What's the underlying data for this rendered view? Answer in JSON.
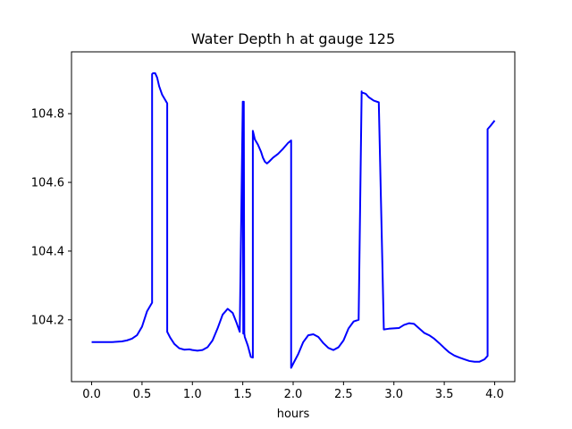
{
  "chart_data": {
    "type": "line",
    "title": "Water Depth h at gauge 125",
    "xlabel": "hours",
    "ylabel": "",
    "xlim": [
      -0.2,
      4.2
    ],
    "ylim": [
      104.02,
      104.98
    ],
    "xticks": [
      0.0,
      0.5,
      1.0,
      1.5,
      2.0,
      2.5,
      3.0,
      3.5,
      4.0
    ],
    "xtick_labels": [
      "0.0",
      "0.5",
      "1.0",
      "1.5",
      "2.0",
      "2.5",
      "3.0",
      "3.5",
      "4.0"
    ],
    "yticks": [
      104.2,
      104.4,
      104.6,
      104.8
    ],
    "ytick_labels": [
      "104.2",
      "104.4",
      "104.6",
      "104.8"
    ],
    "grid": false,
    "series": [
      {
        "color": "#0000ff",
        "x": [
          0.0,
          0.1,
          0.2,
          0.3,
          0.35,
          0.4,
          0.45,
          0.5,
          0.55,
          0.6,
          0.6,
          0.61,
          0.63,
          0.65,
          0.67,
          0.7,
          0.75,
          0.75,
          0.78,
          0.82,
          0.87,
          0.92,
          0.97,
          1.0,
          1.05,
          1.1,
          1.15,
          1.2,
          1.25,
          1.3,
          1.35,
          1.4,
          1.44,
          1.47,
          1.5,
          1.505,
          1.51,
          1.515,
          1.52,
          1.55,
          1.58,
          1.6,
          1.6,
          1.62,
          1.65,
          1.68,
          1.7,
          1.72,
          1.74,
          1.76,
          1.8,
          1.85,
          1.9,
          1.95,
          1.98,
          1.98,
          2.0,
          2.05,
          2.1,
          2.15,
          2.2,
          2.25,
          2.3,
          2.35,
          2.4,
          2.45,
          2.5,
          2.55,
          2.6,
          2.65,
          2.68,
          2.68,
          2.72,
          2.75,
          2.8,
          2.85,
          2.9,
          2.9,
          2.95,
          3.0,
          3.05,
          3.1,
          3.15,
          3.2,
          3.25,
          3.3,
          3.35,
          3.4,
          3.45,
          3.5,
          3.55,
          3.6,
          3.65,
          3.7,
          3.75,
          3.8,
          3.85,
          3.9,
          3.93,
          3.93,
          3.96,
          4.0
        ],
        "y": [
          104.135,
          104.135,
          104.135,
          104.137,
          104.14,
          104.145,
          104.155,
          104.18,
          104.225,
          104.25,
          104.915,
          104.918,
          104.918,
          104.905,
          104.88,
          104.855,
          104.83,
          104.165,
          104.148,
          104.13,
          104.117,
          104.113,
          104.114,
          104.112,
          104.11,
          104.112,
          104.12,
          104.14,
          104.175,
          104.215,
          104.232,
          104.22,
          104.19,
          104.165,
          104.835,
          104.16,
          104.835,
          104.16,
          104.15,
          104.125,
          104.092,
          104.09,
          104.75,
          104.725,
          104.71,
          104.69,
          104.672,
          104.66,
          104.655,
          104.66,
          104.672,
          104.683,
          104.698,
          104.715,
          104.722,
          104.06,
          104.072,
          104.1,
          104.135,
          104.155,
          104.158,
          104.15,
          104.132,
          104.118,
          104.112,
          104.12,
          104.14,
          104.175,
          104.195,
          104.2,
          104.865,
          104.862,
          104.858,
          104.848,
          104.838,
          104.833,
          104.172,
          104.172,
          104.174,
          104.175,
          104.176,
          104.185,
          104.19,
          104.188,
          104.175,
          104.162,
          104.155,
          104.145,
          104.132,
          104.118,
          104.105,
          104.096,
          104.09,
          104.085,
          104.08,
          104.078,
          104.078,
          104.085,
          104.095,
          104.755,
          104.765,
          104.78
        ]
      }
    ]
  }
}
